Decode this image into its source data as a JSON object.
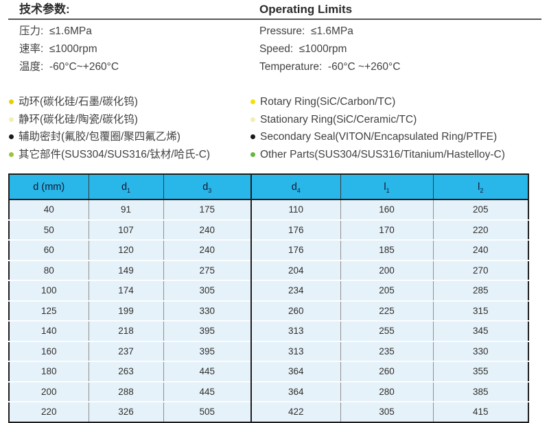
{
  "specs": {
    "zh": {
      "title": "技术参数:",
      "items": [
        "压力:  ≤1.6MPa",
        "速率:  ≤1000rpm",
        "温度:  -60°C~+260°C"
      ]
    },
    "en": {
      "title": "Operating Limits",
      "items": [
        "Pressure:  ≤1.6MPa",
        "Speed:  ≤1000rpm",
        "Temperature:  -60°C ~+260°C"
      ]
    }
  },
  "materials": {
    "zh": [
      {
        "bullet_color": "#e3d200",
        "text": "动环(碳化硅/石墨/碳化钨)"
      },
      {
        "bullet_color": "#f2eeb4",
        "text": "静环(碳化硅/陶瓷/碳化钨)"
      },
      {
        "bullet_color": "#1a1a1a",
        "text": "辅助密封(氟胶/包覆圈/聚四氟乙烯)"
      },
      {
        "bullet_color": "#9ac43c",
        "text": "其它部件(SUS304/SUS316/钛材/哈氏-C)"
      }
    ],
    "en": [
      {
        "bullet_color": "#f5e003",
        "text": "Rotary Ring(SiC/Carbon/TC)"
      },
      {
        "bullet_color": "#f2eeb4",
        "text": "Stationary Ring(SiC/Ceramic/TC)"
      },
      {
        "bullet_color": "#1a1a1a",
        "text": "Secondary Seal(VITON/Encapsulated Ring/PTFE)"
      },
      {
        "bullet_color": "#66b83d",
        "text": "Other Parts(SUS304/SUS316/Titanium/Hastelloy-C)"
      }
    ]
  },
  "table": {
    "header_bg": "#29b6e8",
    "row_bg": "#e6f2f9",
    "columns": [
      {
        "base": "d (mm)",
        "sub": ""
      },
      {
        "base": "d",
        "sub": "1"
      },
      {
        "base": "d",
        "sub": "3"
      },
      {
        "base": "d",
        "sub": "4"
      },
      {
        "base": "l",
        "sub": "1"
      },
      {
        "base": "l",
        "sub": "2"
      }
    ],
    "rows": [
      [
        40,
        91,
        175,
        110,
        160,
        205
      ],
      [
        50,
        107,
        240,
        176,
        170,
        220
      ],
      [
        60,
        120,
        240,
        176,
        185,
        240
      ],
      [
        80,
        149,
        275,
        204,
        200,
        270
      ],
      [
        100,
        174,
        305,
        234,
        205,
        285
      ],
      [
        125,
        199,
        330,
        260,
        225,
        315
      ],
      [
        140,
        218,
        395,
        313,
        255,
        345
      ],
      [
        160,
        237,
        395,
        313,
        235,
        330
      ],
      [
        180,
        263,
        445,
        364,
        260,
        355
      ],
      [
        200,
        288,
        445,
        364,
        280,
        385
      ],
      [
        220,
        326,
        505,
        422,
        305,
        415
      ]
    ]
  }
}
